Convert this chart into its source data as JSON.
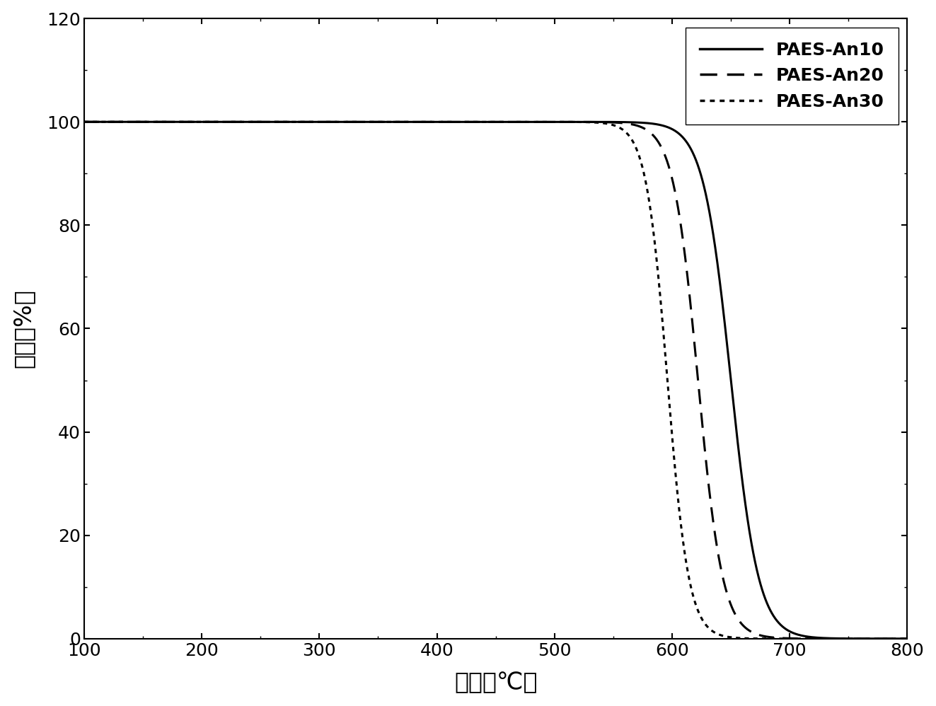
{
  "title": "",
  "xlabel": "温度（℃）",
  "ylabel": "质量（%）",
  "xlim": [
    100,
    800
  ],
  "ylim": [
    0,
    120
  ],
  "xticks": [
    100,
    200,
    300,
    400,
    500,
    600,
    700,
    800
  ],
  "yticks": [
    0,
    20,
    40,
    60,
    80,
    100,
    120
  ],
  "series": [
    {
      "label": "PAES-An10",
      "linestyle": "solid",
      "linewidth": 2.2,
      "color": "#000000",
      "midpoint": 650,
      "steepness": 0.085,
      "initial": 100.0,
      "final": 0.0
    },
    {
      "label": "PAES-An20",
      "linestyle": "dashed",
      "linewidth": 2.2,
      "color": "#000000",
      "midpoint": 622,
      "steepness": 0.095,
      "initial": 100.0,
      "final": 0.0
    },
    {
      "label": "PAES-An30",
      "linestyle": "dotted",
      "linewidth": 2.2,
      "color": "#000000",
      "midpoint": 596,
      "steepness": 0.11,
      "initial": 100.0,
      "final": 0.0
    }
  ],
  "legend_fontsize": 18,
  "axis_fontsize": 24,
  "tick_fontsize": 18,
  "figure_bg": "#ffffff",
  "axes_bg": "#ffffff"
}
